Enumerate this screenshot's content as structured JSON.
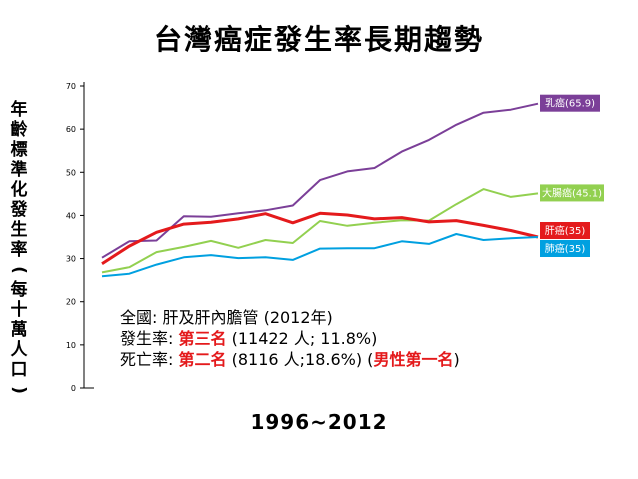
{
  "chart_data": {
    "type": "line",
    "title": "台灣癌症發生率長期趨勢",
    "xlabel": "1996~2012",
    "ylabel": "年齡標準化發生率(每十萬人口)",
    "ylim": [
      0,
      70
    ],
    "yticks": [
      "0",
      "10",
      "20",
      "30",
      "40",
      "50",
      "60",
      "70"
    ],
    "x": [
      1996,
      1997,
      1998,
      1999,
      2000,
      2001,
      2002,
      2003,
      2004,
      2005,
      2006,
      2007,
      2008,
      2009,
      2010,
      2011,
      2012
    ],
    "series": [
      {
        "name": "乳癌",
        "label": "乳癌(65.9)",
        "color": "#7b3f98",
        "values": [
          30.2,
          34.0,
          34.2,
          39.8,
          39.7,
          40.5,
          41.2,
          42.3,
          48.2,
          50.2,
          51.0,
          54.8,
          57.5,
          61.0,
          63.8,
          64.5,
          65.9
        ]
      },
      {
        "name": "大腸癌",
        "label": "大腸癌(45.1)",
        "color": "#92d050",
        "values": [
          26.8,
          28.0,
          31.5,
          32.7,
          34.1,
          32.5,
          34.3,
          33.6,
          38.7,
          37.6,
          38.3,
          38.9,
          38.8,
          42.6,
          46.1,
          44.3,
          45.1
        ]
      },
      {
        "name": "肝癌",
        "label": "肝癌(35)",
        "color": "#e41a1c",
        "values": [
          28.8,
          32.9,
          36.1,
          38.0,
          38.4,
          39.2,
          40.4,
          38.3,
          40.5,
          40.1,
          39.2,
          39.5,
          38.5,
          38.8,
          37.7,
          36.5,
          35.0
        ]
      },
      {
        "name": "肺癌",
        "label": "肺癌(35)",
        "color": "#00a0e0",
        "values": [
          25.9,
          26.5,
          28.6,
          30.3,
          30.8,
          30.1,
          30.3,
          29.7,
          32.3,
          32.4,
          32.4,
          34.0,
          33.4,
          35.7,
          34.3,
          34.7,
          35.0
        ]
      }
    ]
  },
  "note": {
    "line1_prefix": "全國: ",
    "line1_text": "肝及肝內膽管 (2012年)",
    "line2_prefix": "發生率: ",
    "line2_rank": "第三名",
    "line2_rest": " (11422 人; 11.8%)",
    "line3_prefix": "死亡率: ",
    "line3_rank": "第二名",
    "line3_mid": " (8116 人;18.6%) (",
    "line3_highlight": "男性第一名",
    "line3_end": ")"
  }
}
